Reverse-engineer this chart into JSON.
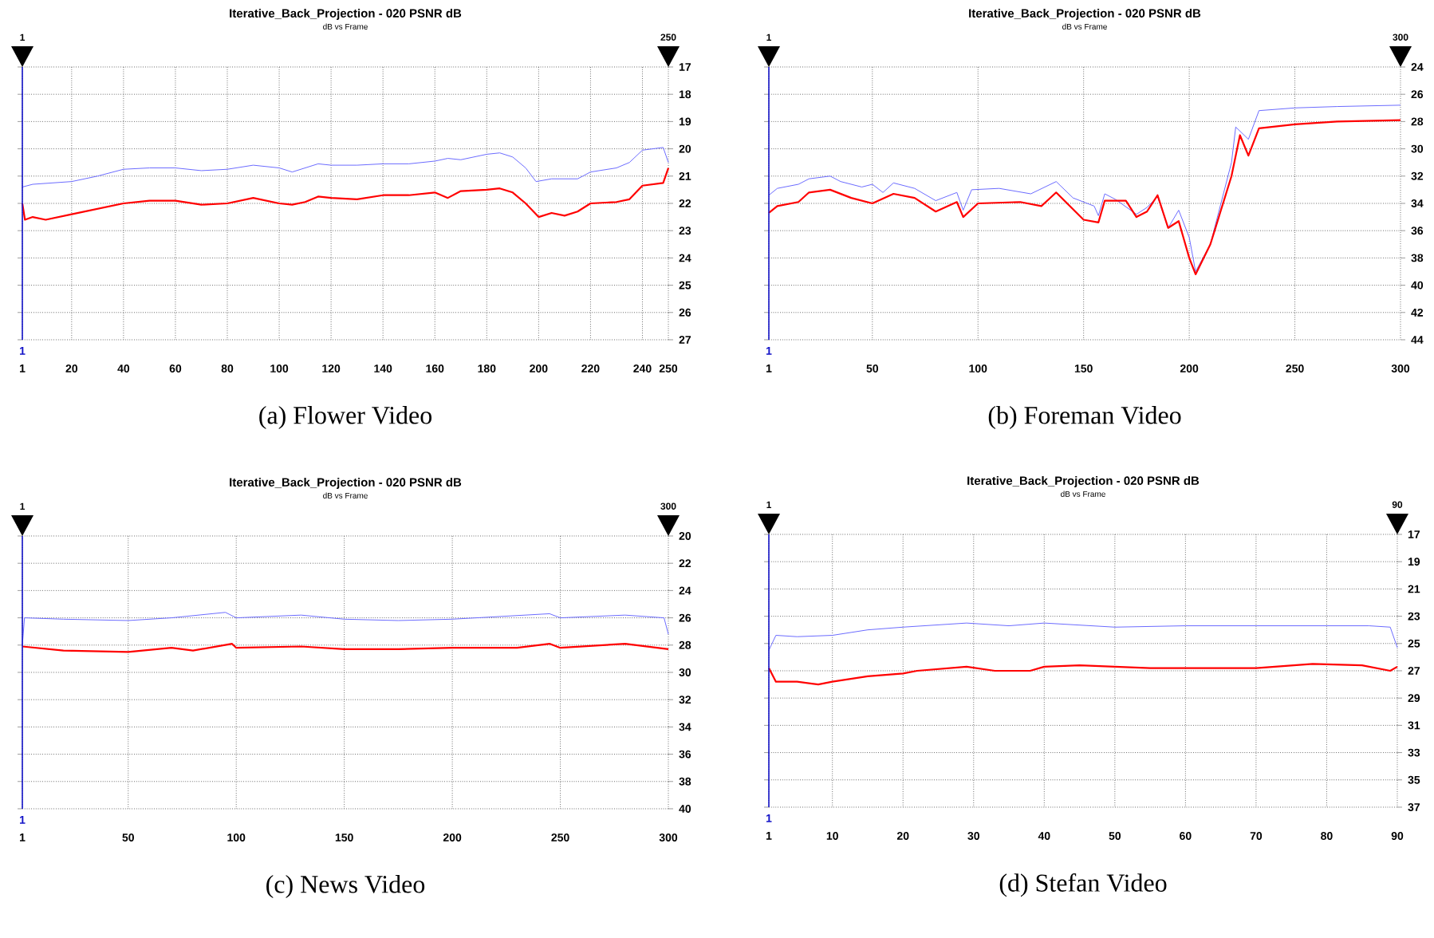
{
  "chart_data": [
    {
      "type": "line",
      "title": "Iterative_Back_Projection - 020 PSNR dB",
      "subtitle": "dB vs Frame",
      "annotations": [
        "(a) Flower Video",
        "1",
        "250",
        "1"
      ],
      "grid": true,
      "xlim": [
        1,
        250
      ],
      "ylim": [
        27,
        17
      ],
      "xticks": [
        1,
        20,
        40,
        60,
        80,
        100,
        120,
        140,
        160,
        180,
        200,
        220,
        240,
        250
      ],
      "yticks": [
        17,
        18,
        19,
        20,
        21,
        22,
        23,
        24,
        25,
        26,
        27
      ],
      "series": [
        {
          "color": "#6b6bff",
          "x": [
            1,
            5,
            20,
            30,
            40,
            50,
            60,
            70,
            80,
            90,
            100,
            105,
            110,
            115,
            120,
            130,
            140,
            150,
            160,
            165,
            170,
            180,
            185,
            190,
            195,
            199,
            205,
            215,
            220,
            230,
            235,
            240,
            248,
            250
          ],
          "values": [
            21.4,
            21.3,
            21.2,
            21.0,
            20.75,
            20.7,
            20.7,
            20.8,
            20.75,
            20.6,
            20.7,
            20.85,
            20.7,
            20.55,
            20.6,
            20.6,
            20.55,
            20.55,
            20.45,
            20.35,
            20.4,
            20.2,
            20.15,
            20.3,
            20.7,
            21.2,
            21.1,
            21.1,
            20.85,
            20.7,
            20.5,
            20.05,
            19.95,
            20.5
          ]
        },
        {
          "color": "#ff0000",
          "x": [
            1,
            2,
            5,
            10,
            20,
            30,
            40,
            50,
            60,
            70,
            80,
            90,
            100,
            105,
            110,
            115,
            120,
            130,
            140,
            150,
            160,
            165,
            170,
            180,
            185,
            190,
            195,
            200,
            205,
            210,
            215,
            220,
            230,
            235,
            240,
            248,
            250
          ],
          "values": [
            22.0,
            22.6,
            22.5,
            22.6,
            22.4,
            22.2,
            22.0,
            21.9,
            21.9,
            22.05,
            22.0,
            21.8,
            22.0,
            22.05,
            21.95,
            21.75,
            21.8,
            21.85,
            21.7,
            21.7,
            21.6,
            21.8,
            21.55,
            21.5,
            21.45,
            21.6,
            22.0,
            22.5,
            22.35,
            22.45,
            22.3,
            22.0,
            21.95,
            21.85,
            21.35,
            21.25,
            20.7
          ]
        }
      ]
    },
    {
      "type": "line",
      "title": "Iterative_Back_Projection - 020 PSNR dB",
      "subtitle": "dB vs Frame",
      "annotations": [
        "(b) Foreman Video",
        "1",
        "300",
        "1"
      ],
      "grid": true,
      "xlim": [
        1,
        300
      ],
      "ylim": [
        44,
        24
      ],
      "xticks": [
        1,
        50,
        100,
        150,
        200,
        250,
        300
      ],
      "yticks": [
        24,
        26,
        28,
        30,
        32,
        34,
        36,
        38,
        40,
        42,
        44
      ],
      "series": [
        {
          "color": "#6b6bff",
          "x": [
            1,
            5,
            15,
            20,
            30,
            35,
            45,
            50,
            55,
            60,
            70,
            80,
            90,
            93,
            97,
            110,
            125,
            137,
            145,
            155,
            157,
            160,
            165,
            175,
            180,
            185,
            190,
            195,
            200,
            203,
            210,
            215,
            220,
            222,
            228,
            233,
            250,
            270,
            300
          ],
          "values": [
            33.4,
            32.9,
            32.6,
            32.2,
            32.0,
            32.4,
            32.8,
            32.6,
            33.2,
            32.5,
            32.9,
            33.8,
            33.2,
            34.5,
            33.0,
            32.9,
            33.3,
            32.4,
            33.6,
            34.2,
            34.9,
            33.3,
            33.7,
            34.8,
            34.3,
            33.5,
            35.8,
            34.5,
            36.5,
            39.0,
            37.0,
            34.0,
            31.0,
            28.4,
            29.3,
            27.2,
            27.0,
            26.9,
            26.8
          ]
        },
        {
          "color": "#ff0000",
          "x": [
            1,
            5,
            15,
            20,
            30,
            40,
            50,
            60,
            70,
            80,
            90,
            93,
            100,
            120,
            130,
            137,
            150,
            157,
            160,
            170,
            175,
            180,
            185,
            190,
            195,
            200,
            203,
            210,
            215,
            220,
            224,
            228,
            233,
            250,
            270,
            300
          ],
          "values": [
            34.7,
            34.2,
            33.9,
            33.2,
            33.0,
            33.6,
            34.0,
            33.3,
            33.6,
            34.6,
            33.9,
            35.0,
            34.0,
            33.9,
            34.2,
            33.2,
            35.2,
            35.4,
            33.8,
            33.8,
            35.0,
            34.6,
            33.4,
            35.8,
            35.3,
            38.0,
            39.2,
            37.0,
            34.5,
            32.0,
            29.0,
            30.5,
            28.5,
            28.2,
            28.0,
            27.9
          ]
        }
      ]
    },
    {
      "type": "line",
      "title": "Iterative_Back_Projection - 020 PSNR dB",
      "subtitle": "dB vs Frame",
      "annotations": [
        "(c) News Video",
        "1",
        "300",
        "1"
      ],
      "grid": true,
      "xlim": [
        1,
        300
      ],
      "ylim": [
        40,
        20
      ],
      "xticks": [
        1,
        50,
        100,
        150,
        200,
        250,
        300
      ],
      "yticks": [
        20,
        22,
        24,
        26,
        28,
        30,
        32,
        34,
        36,
        38,
        40
      ],
      "series": [
        {
          "color": "#6b6bff",
          "x": [
            1,
            2,
            20,
            50,
            70,
            95,
            100,
            130,
            150,
            175,
            200,
            245,
            250,
            280,
            298,
            300
          ],
          "values": [
            28.0,
            26.0,
            26.1,
            26.2,
            26.0,
            25.6,
            26.0,
            25.8,
            26.1,
            26.2,
            26.1,
            25.7,
            26.0,
            25.8,
            26.0,
            27.2
          ]
        },
        {
          "color": "#ff0000",
          "x": [
            1,
            20,
            50,
            70,
            80,
            98,
            100,
            130,
            150,
            175,
            200,
            230,
            245,
            250,
            280,
            300
          ],
          "values": [
            28.1,
            28.4,
            28.5,
            28.2,
            28.4,
            27.9,
            28.2,
            28.1,
            28.3,
            28.3,
            28.2,
            28.2,
            27.9,
            28.2,
            27.9,
            28.3
          ]
        }
      ]
    },
    {
      "type": "line",
      "title": "Iterative_Back_Projection - 020 PSNR dB",
      "subtitle": "dB vs Frame",
      "annotations": [
        "(d) Stefan Video",
        "1",
        "90",
        "1"
      ],
      "grid": true,
      "xlim": [
        1,
        90
      ],
      "ylim": [
        37,
        17
      ],
      "xticks": [
        1,
        10,
        20,
        30,
        40,
        50,
        60,
        70,
        80,
        90
      ],
      "yticks": [
        17,
        19,
        21,
        23,
        25,
        27,
        29,
        31,
        33,
        35,
        37
      ],
      "series": [
        {
          "color": "#6b6bff",
          "x": [
            1,
            2,
            5,
            10,
            15,
            20,
            29,
            35,
            40,
            50,
            60,
            70,
            80,
            86,
            89,
            90
          ],
          "values": [
            25.5,
            24.4,
            24.5,
            24.4,
            24.0,
            23.8,
            23.5,
            23.7,
            23.5,
            23.8,
            23.7,
            23.7,
            23.7,
            23.7,
            23.8,
            25.3
          ]
        },
        {
          "color": "#ff0000",
          "x": [
            1,
            2,
            5,
            8,
            10,
            15,
            20,
            22,
            29,
            33,
            38,
            40,
            45,
            55,
            70,
            78,
            85,
            89,
            90
          ],
          "values": [
            26.8,
            27.8,
            27.8,
            28.0,
            27.8,
            27.4,
            27.2,
            27.0,
            26.7,
            27.0,
            27.0,
            26.7,
            26.6,
            26.8,
            26.8,
            26.5,
            26.6,
            27.0,
            26.7
          ]
        }
      ]
    }
  ]
}
